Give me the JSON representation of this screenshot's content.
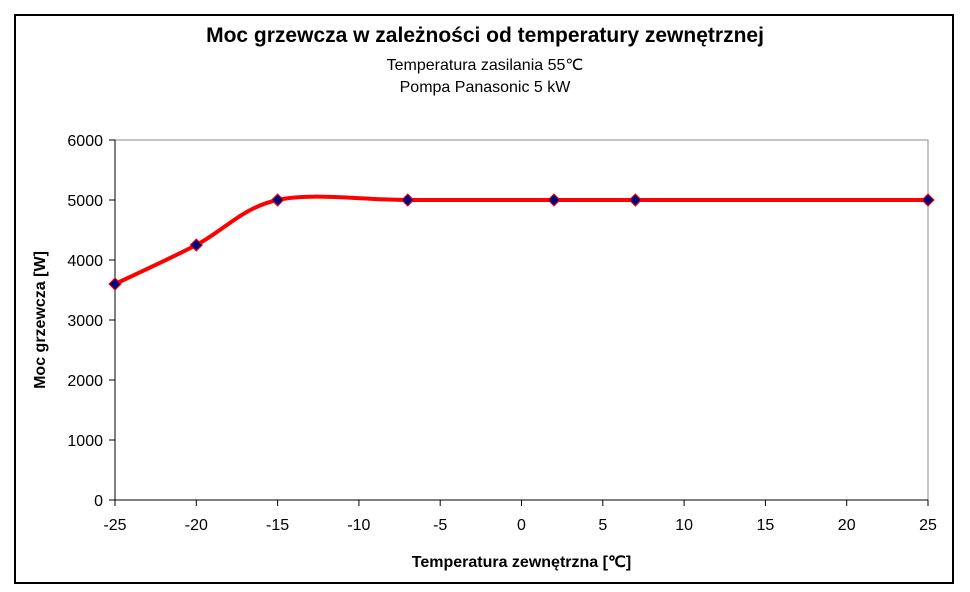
{
  "chart_data": {
    "type": "line",
    "title": "Moc grzewcza w zależności od temperatury zewnętrznej",
    "subtitles": [
      "Temperatura zasilania 55℃",
      "Pompa Panasonic 5 kW"
    ],
    "xlabel": "Temperatura zewnętrzna [℃]",
    "ylabel": "Moc grzewcza [W]",
    "xlim": [
      -25,
      25
    ],
    "ylim": [
      0,
      6000
    ],
    "xticks": [
      -25,
      -20,
      -15,
      -10,
      -5,
      0,
      5,
      10,
      15,
      20,
      25
    ],
    "yticks": [
      0,
      1000,
      2000,
      3000,
      4000,
      5000,
      6000
    ],
    "grid": false,
    "smooth": true,
    "line_color": "#ff0000",
    "marker_color": "#000080",
    "marker": "diamond",
    "x": [
      -25,
      -20,
      -15,
      -7,
      2,
      7,
      25
    ],
    "y": [
      3600,
      4250,
      5000,
      5000,
      5000,
      5000,
      5000
    ]
  }
}
